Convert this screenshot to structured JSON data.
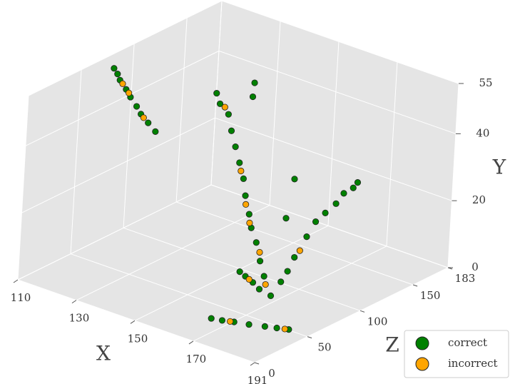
{
  "chart_data": {
    "type": "scatter3d",
    "x_label": "X",
    "y_label": "Y",
    "z_label": "Z",
    "xlim": [
      110,
      191
    ],
    "xticks": [
      110,
      130,
      150,
      170,
      191
    ],
    "zlim": [
      0,
      183
    ],
    "zticks": [
      0,
      50,
      100,
      150,
      183
    ],
    "ylim": [
      0,
      55
    ],
    "yticks": [
      0,
      20,
      40,
      55
    ],
    "grid": true,
    "legend": "lower right",
    "series": [
      {
        "name": "correct",
        "color": "#008000",
        "x": [
          112,
          115,
          118,
          123,
          127,
          132,
          136,
          141,
          146,
          146,
          146,
          140,
          141,
          143,
          145,
          147,
          149,
          151,
          153,
          156,
          158,
          161,
          164,
          167,
          171,
          178,
          178,
          177,
          177,
          176,
          175,
          174,
          172,
          171,
          170,
          164,
          165,
          155,
          158,
          162,
          166,
          167,
          170,
          173,
          177,
          181,
          184,
          187
        ],
        "z": [
          76,
          71,
          65,
          57,
          50,
          42,
          35,
          28,
          21,
          115,
          114,
          96,
          97,
          100,
          98,
          97,
          96,
          95,
          92,
          88,
          85,
          82,
          78,
          74,
          70,
          128,
          124,
          118,
          111,
          104,
          98,
          93,
          88,
          85,
          82,
          107,
          98,
          85,
          82,
          78,
          73,
          25,
          27,
          30,
          33,
          37,
          40,
          43
        ],
        "y": [
          52,
          52,
          52,
          52,
          52,
          52,
          52,
          52,
          52,
          52,
          48,
          50,
          47,
          44,
          40,
          36,
          32,
          28,
          24,
          20,
          17,
          14,
          10,
          7,
          3,
          30,
          29,
          28,
          26,
          24,
          22,
          18,
          12,
          8,
          5,
          30,
          20,
          3,
          3,
          3,
          3,
          2,
          2,
          2,
          2,
          2,
          2,
          2
        ]
      },
      {
        "name": "incorrect",
        "color": "#ffa500",
        "x": [
          120,
          125,
          138,
          142,
          150,
          154,
          157,
          163,
          168,
          173,
          160,
          172,
          186
        ],
        "z": [
          62,
          54,
          32,
          99,
          95,
          90,
          86,
          80,
          73,
          90,
          80,
          29,
          42
        ],
        "y": [
          52,
          52,
          52,
          46,
          30,
          22,
          18,
          12,
          5,
          14,
          3,
          2,
          2
        ]
      }
    ]
  }
}
